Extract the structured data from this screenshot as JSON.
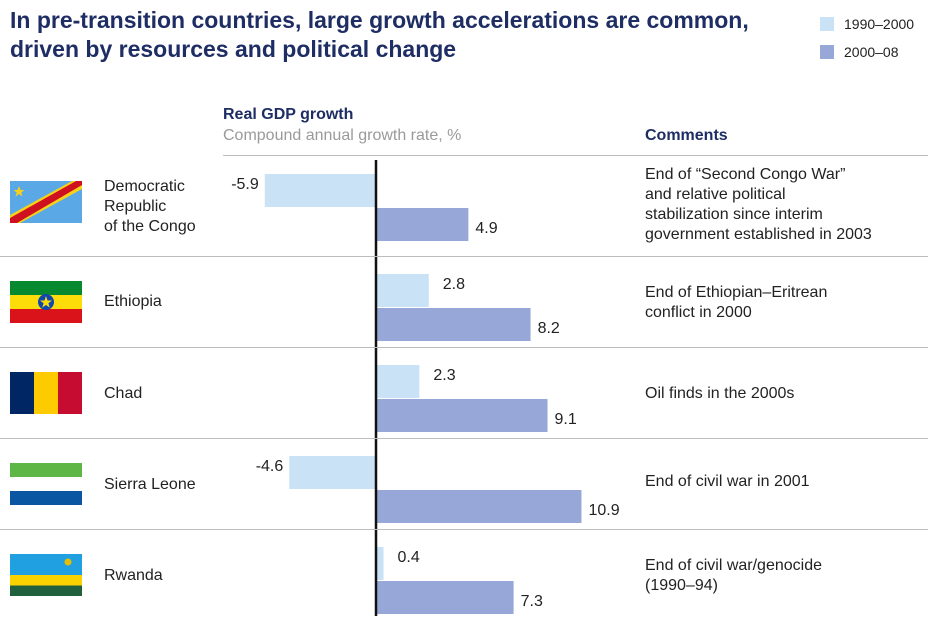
{
  "title": "In pre-transition countries, large growth accelerations are common, driven by resources and political change",
  "legend": [
    {
      "label": "1990–2000",
      "color": "#c9e2f5"
    },
    {
      "label": "2000–08",
      "color": "#97a7d8"
    }
  ],
  "headers": {
    "chart_title": "Real GDP growth",
    "chart_subtitle": "Compound annual growth rate, %",
    "comments": "Comments"
  },
  "rows": [
    {
      "country": [
        "Democratic",
        "Republic",
        "of the Congo"
      ],
      "flag": "drc-flag-icon",
      "comment": [
        "End of “Second Congo War”",
        "and relative political",
        "stabilization since interim",
        "government established in 2003"
      ]
    },
    {
      "country": [
        "Ethiopia"
      ],
      "flag": "ethiopia-flag-icon",
      "comment": [
        "End of Ethiopian–Eritrean",
        "conflict in 2000"
      ]
    },
    {
      "country": [
        "Chad"
      ],
      "flag": "chad-flag-icon",
      "comment": [
        "Oil finds in the 2000s"
      ]
    },
    {
      "country": [
        "Sierra Leone"
      ],
      "flag": "sierra-leone-flag-icon",
      "comment": [
        "End of civil war in 2001"
      ]
    },
    {
      "country": [
        "Rwanda"
      ],
      "flag": "rwanda-flag-icon",
      "comment": [
        "End of civil war/genocide",
        "(1990–94)"
      ]
    }
  ],
  "chart_data": {
    "type": "bar",
    "orientation": "horizontal",
    "title": "Real GDP growth",
    "subtitle": "Compound annual growth rate, %",
    "categories": [
      "Democratic Republic of the Congo",
      "Ethiopia",
      "Chad",
      "Sierra Leone",
      "Rwanda"
    ],
    "series": [
      {
        "name": "1990–2000",
        "values": [
          -5.9,
          2.8,
          2.3,
          -4.6,
          0.4
        ],
        "labels": [
          "-5.9",
          "2.8",
          "2.3",
          "-4.6",
          "0.4"
        ],
        "color": "#c9e2f5"
      },
      {
        "name": "2000–08",
        "values": [
          4.9,
          8.2,
          9.1,
          10.9,
          7.3
        ],
        "labels": [
          "4.9",
          "8.2",
          "9.1",
          "10.9",
          "7.3"
        ],
        "color": "#97a7d8"
      }
    ],
    "legend_position": "top-right",
    "grid": false
  }
}
